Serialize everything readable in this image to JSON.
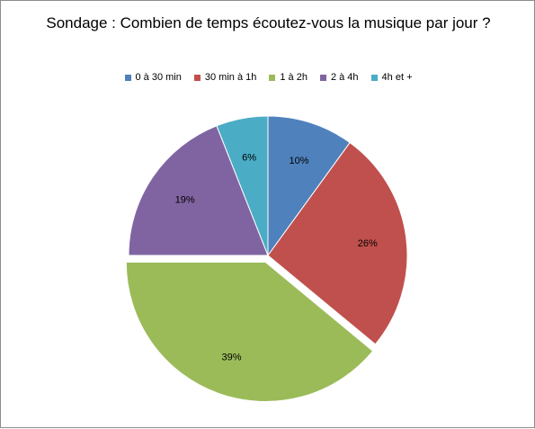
{
  "chart_data": {
    "type": "pie",
    "title": "Sondage : Combien de temps écoutez-vous la musique par jour ?",
    "categories": [
      "0 à 30 min",
      "30 min à 1h",
      "1 à 2h",
      "2 à 4h",
      "4h et +"
    ],
    "values": [
      10,
      26,
      39,
      19,
      6
    ],
    "data_labels": [
      "10%",
      "26%",
      "39%",
      "19%",
      "6%"
    ],
    "colors": [
      "#4f81bd",
      "#c0504d",
      "#9bbb59",
      "#8064a2",
      "#4bacc6"
    ],
    "exploded_category": "1 à 2h",
    "legend_position": "top"
  }
}
